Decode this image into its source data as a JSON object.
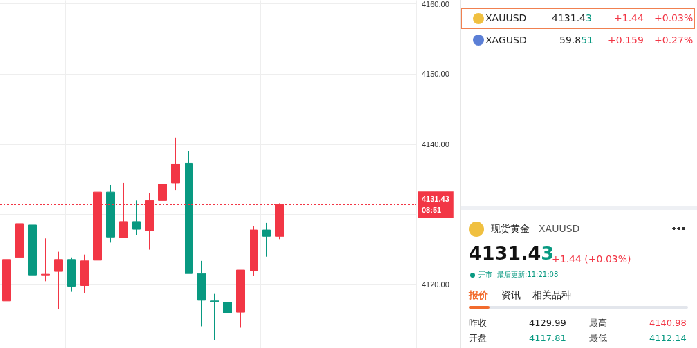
{
  "chart_data": [
    {
      "type": "candlestick",
      "categories": [
        null,
        null,
        null,
        null,
        null,
        null,
        null,
        null,
        null,
        null,
        null,
        null,
        null,
        null,
        null,
        null,
        null,
        null,
        null,
        null,
        null,
        null,
        null,
        null,
        null,
        null,
        null,
        null,
        null,
        null,
        null,
        null
      ],
      "ohlc": [
        [
          4117.7,
          4123.6,
          4117.7,
          4123.6
        ],
        [
          4123.9,
          4128.9,
          4120.9,
          4128.7
        ],
        [
          4128.5,
          4129.5,
          4119.8,
          4121.4
        ],
        [
          4121.4,
          4126.6,
          4120.5,
          4121.5
        ],
        [
          4121.9,
          4124.7,
          4116.5,
          4123.6
        ],
        [
          4123.6,
          4123.9,
          4119.0,
          4119.8
        ],
        [
          4119.9,
          4124.3,
          4118.8,
          4123.4
        ],
        [
          4123.5,
          4133.9,
          4123.0,
          4133.2
        ],
        [
          4133.2,
          4134.2,
          4126.0,
          4126.8
        ],
        [
          4126.7,
          4134.5,
          4126.7,
          4129.0
        ],
        [
          4129.0,
          4132.0,
          4127.1,
          4127.9
        ],
        [
          4127.7,
          4133.1,
          4125.0,
          4132.0
        ],
        [
          4132.0,
          4138.9,
          4129.8,
          4134.3
        ],
        [
          4134.5,
          4140.9,
          4133.5,
          4137.2
        ],
        [
          4137.3,
          4139.1,
          4121.6,
          4121.6
        ],
        [
          4121.6,
          4123.4,
          4114.1,
          4117.8
        ],
        [
          4117.7,
          4118.7,
          4112.1,
          4117.6
        ],
        [
          4117.5,
          4117.8,
          4113.2,
          4116.0
        ],
        [
          4116.1,
          4122.1,
          4113.9,
          4122.1
        ],
        [
          4122.0,
          4128.3,
          4121.3,
          4127.8
        ],
        [
          4127.8,
          4128.8,
          4124.0,
          4126.9
        ],
        [
          4126.9,
          4131.6,
          4126.5,
          4131.4
        ],
        null,
        null,
        null,
        null,
        null,
        null,
        null,
        null,
        null,
        null
      ],
      "colors": [
        "#f23645",
        "#f23645",
        "#089981",
        "#f23645",
        "#f23645",
        "#089981",
        "#f23645",
        "#f23645",
        "#089981",
        "#f23645",
        "#089981",
        "#f23645",
        "#f23645",
        "#f23645",
        "#089981",
        "#089981",
        "#089981",
        "#089981",
        "#f23645",
        "#f23645",
        "#089981",
        "#f23645",
        null,
        null,
        null,
        null,
        null,
        null,
        null,
        null,
        null,
        null
      ],
      "ylim": [
        4111,
        4160.5
      ],
      "yticks": [
        {
          "value": 4120,
          "label": "4120.00"
        },
        {
          "value": 4130,
          "label": null
        },
        {
          "value": 4140,
          "label": "4140.00"
        },
        {
          "value": 4150,
          "label": "4150.00"
        },
        {
          "value": 4160,
          "label": "4160.00"
        }
      ],
      "grid": true,
      "ref_lines": [
        {
          "axis": "y",
          "value": 4131.43,
          "label": "4131.43\n08:51",
          "color": "#f23645",
          "line_style": "dotted"
        }
      ]
    },
    {
      "type": "other",
      "annotations": [
        "XAUUSD",
        "4131.43",
        "+1.44",
        "+0.03%",
        "XAGUSD",
        "59.851",
        "+0.159",
        "+0.27%",
        "现货黄金",
        "XAUUSD",
        "4131.43",
        "+1.44 (+0.03%)",
        "开市",
        "最后更新:11:21:08",
        "报价",
        "资讯",
        "相关品种",
        "昨收",
        "4129.99",
        "最高",
        "4140.98",
        "开盘",
        "4117.81",
        "最低",
        "4112.14"
      ]
    }
  ]
}
